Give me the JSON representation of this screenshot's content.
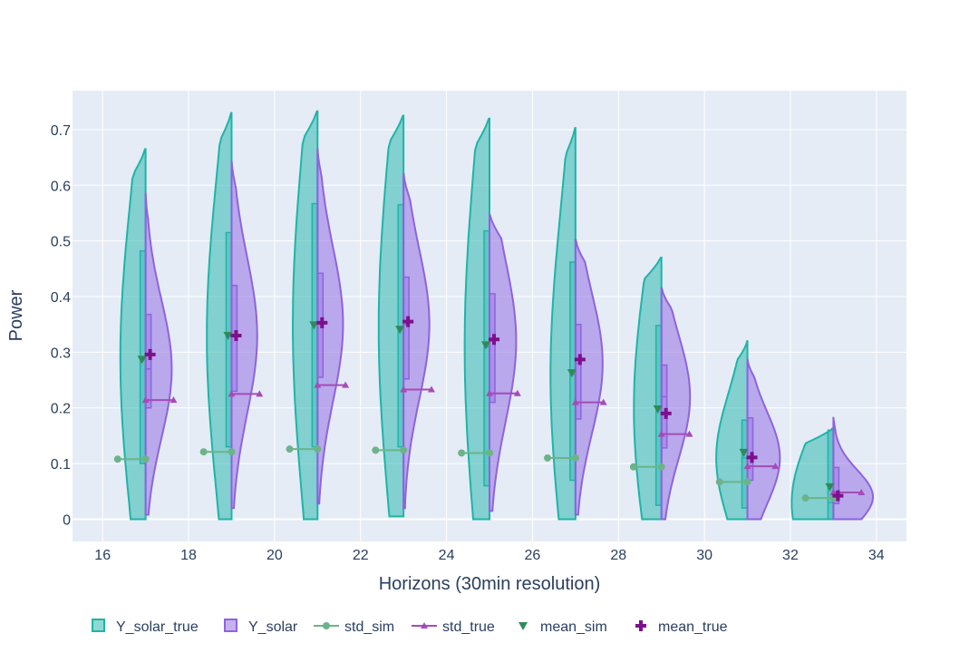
{
  "chart_data": {
    "type": "violin",
    "xlabel": "Horizons (30min resolution)",
    "ylabel": "Power",
    "xlim": [
      15.3,
      34.7
    ],
    "ylim": [
      -0.04,
      0.77
    ],
    "xticks": [
      "16",
      "18",
      "20",
      "22",
      "24",
      "26",
      "28",
      "30",
      "32",
      "34"
    ],
    "yticks": [
      "0",
      "0.1",
      "0.2",
      "0.3",
      "0.4",
      "0.5",
      "0.6",
      "0.7"
    ],
    "grid": true,
    "legend_position": "bottom",
    "colors": {
      "plot_bg": "#e5ecf6",
      "y_solar_true": "#1fb4a8",
      "y_solar": "#8e63e0",
      "std_sim": "#6cb38a",
      "std_true": "#a54bb8",
      "mean_sim": "#2f8a5a",
      "mean_true": "#7d0f8c"
    },
    "legend": [
      {
        "name": "Y_solar_true",
        "icon": "box-icon"
      },
      {
        "name": "Y_solar",
        "icon": "box-icon"
      },
      {
        "name": "std_sim",
        "icon": "line-circle-icon"
      },
      {
        "name": "std_true",
        "icon": "line-triangle-icon"
      },
      {
        "name": "mean_sim",
        "icon": "triangle-down-icon"
      },
      {
        "name": "mean_true",
        "icon": "cross-icon"
      }
    ],
    "horizons": [
      17,
      19,
      21,
      23,
      25,
      27,
      29,
      31,
      33
    ],
    "series": [
      {
        "name": "Y_solar_true",
        "max": [
          0.665,
          0.73,
          0.733,
          0.725,
          0.72,
          0.703,
          0.47,
          0.32,
          0.163
        ],
        "q1": [
          0.1,
          0.13,
          0.13,
          0.13,
          0.06,
          0.07,
          0.025,
          0.02,
          0.0
        ],
        "median": [
          0.29,
          0.33,
          0.35,
          0.345,
          0.31,
          0.26,
          0.2,
          0.11,
          0.03
        ],
        "q3": [
          0.482,
          0.515,
          0.567,
          0.565,
          0.518,
          0.462,
          0.348,
          0.178,
          0.16
        ],
        "min": [
          0.0,
          0.0,
          0.0,
          0.005,
          0.0,
          0.0,
          0.0,
          0.0,
          0.0
        ]
      },
      {
        "name": "Y_solar",
        "max": [
          0.585,
          0.643,
          0.665,
          0.62,
          0.547,
          0.502,
          0.415,
          0.287,
          0.182
        ],
        "q1": [
          0.2,
          0.23,
          0.255,
          0.252,
          0.21,
          0.18,
          0.128,
          0.07,
          0.028
        ],
        "median": [
          0.27,
          0.33,
          0.35,
          0.35,
          0.32,
          0.28,
          0.22,
          0.11,
          0.04
        ],
        "q3": [
          0.368,
          0.42,
          0.442,
          0.435,
          0.405,
          0.35,
          0.277,
          0.182,
          0.093
        ],
        "min": [
          0.008,
          0.02,
          0.028,
          0.02,
          0.015,
          0.008,
          0.0,
          0.0,
          0.0
        ]
      },
      {
        "name": "std_sim",
        "x": [
          16.35,
          18.35,
          20.35,
          22.35,
          24.35,
          26.35,
          28.35,
          30.35,
          32.35
        ],
        "values": [
          0.108,
          0.121,
          0.126,
          0.124,
          0.119,
          0.11,
          0.094,
          0.067,
          0.038
        ]
      },
      {
        "name": "std_true",
        "x": [
          17.65,
          19.65,
          21.65,
          23.65,
          25.65,
          27.65,
          29.65,
          31.65,
          33.65
        ],
        "values": [
          0.214,
          0.225,
          0.241,
          0.233,
          0.226,
          0.21,
          0.153,
          0.095,
          0.048
        ]
      },
      {
        "name": "mean_sim",
        "values": [
          0.287,
          0.33,
          0.349,
          0.341,
          0.313,
          0.263,
          0.198,
          0.12,
          0.058
        ]
      },
      {
        "name": "mean_true",
        "values": [
          0.296,
          0.33,
          0.353,
          0.355,
          0.323,
          0.287,
          0.19,
          0.111,
          0.042
        ]
      }
    ]
  }
}
